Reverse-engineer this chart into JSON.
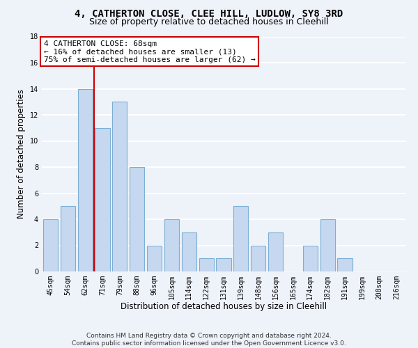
{
  "title1": "4, CATHERTON CLOSE, CLEE HILL, LUDLOW, SY8 3RD",
  "title2": "Size of property relative to detached houses in Cleehill",
  "xlabel": "Distribution of detached houses by size in Cleehill",
  "ylabel": "Number of detached properties",
  "categories": [
    "45sqm",
    "54sqm",
    "62sqm",
    "71sqm",
    "79sqm",
    "88sqm",
    "96sqm",
    "105sqm",
    "114sqm",
    "122sqm",
    "131sqm",
    "139sqm",
    "148sqm",
    "156sqm",
    "165sqm",
    "174sqm",
    "182sqm",
    "191sqm",
    "199sqm",
    "208sqm",
    "216sqm"
  ],
  "values": [
    4,
    5,
    14,
    11,
    13,
    8,
    2,
    4,
    3,
    1,
    1,
    5,
    2,
    3,
    0,
    2,
    4,
    1,
    0,
    0,
    0
  ],
  "bar_color": "#c5d8f0",
  "bar_edge_color": "#7bafd4",
  "vline_x_index": 2,
  "vline_color": "#cc0000",
  "annotation_text": "4 CATHERTON CLOSE: 68sqm\n← 16% of detached houses are smaller (13)\n75% of semi-detached houses are larger (62) →",
  "annotation_box_color": "#ffffff",
  "annotation_box_edge_color": "#cc0000",
  "ylim": [
    0,
    18
  ],
  "yticks": [
    0,
    2,
    4,
    6,
    8,
    10,
    12,
    14,
    16,
    18
  ],
  "footer": "Contains HM Land Registry data © Crown copyright and database right 2024.\nContains public sector information licensed under the Open Government Licence v3.0.",
  "background_color": "#eef2f9",
  "grid_color": "#ffffff",
  "title1_fontsize": 10,
  "title2_fontsize": 9,
  "xlabel_fontsize": 8.5,
  "ylabel_fontsize": 8.5,
  "tick_fontsize": 7,
  "annotation_fontsize": 8,
  "footer_fontsize": 6.5
}
